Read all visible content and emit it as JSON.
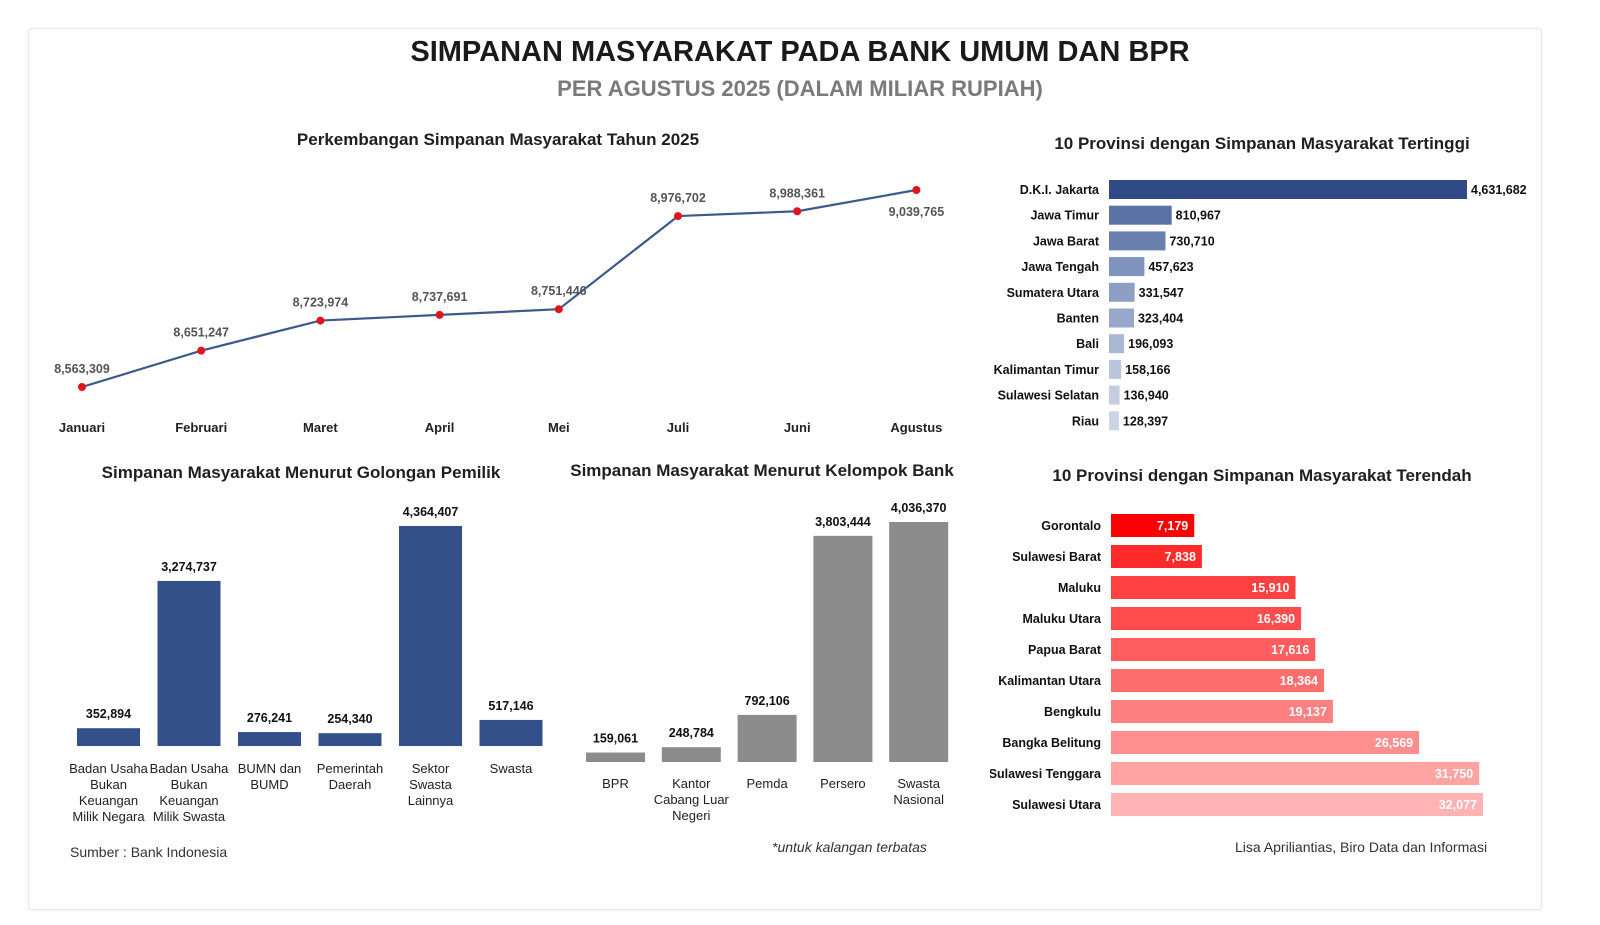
{
  "header": {
    "title": "SIMPANAN MASYARAKAT PADA BANK UMUM DAN BPR",
    "subtitle": "PER AGUSTUS 2025 (DALAM MILIAR RUPIAH)"
  },
  "footer": {
    "source": "Sumber : Bank Indonesia",
    "note": "*untuk kalangan terbatas",
    "author": "Lisa Apriliantias, Biro Data dan Informasi"
  },
  "colors": {
    "navy": "#34508a",
    "gray": "#8c8c8c",
    "point": "#e0141e",
    "line": "#3d5a8c",
    "red": "#ff0000"
  },
  "chart_data": [
    {
      "id": "trend",
      "type": "line",
      "title": "Perkembangan Simpanan Masyarakat Tahun 2025",
      "categories": [
        "Januari",
        "Februari",
        "Maret",
        "April",
        "Mei",
        "Juli",
        "Juni",
        "Agustus"
      ],
      "values": [
        8563309,
        8651247,
        8723974,
        8737691,
        8751446,
        8976702,
        8988361,
        9039765
      ],
      "value_labels": [
        "8,563,309",
        "8,651,247",
        "8,723,974",
        "8,737,691",
        "8,751,446",
        "8,976,702",
        "8,988,361",
        "9,039,765"
      ],
      "grid": false
    },
    {
      "id": "top10",
      "type": "bar",
      "orientation": "horizontal",
      "title": "10 Provinsi dengan Simpanan Masyarakat Tertinggi",
      "categories": [
        "D.K.I. Jakarta",
        "Jawa Timur",
        "Jawa Barat",
        "Jawa Tengah",
        "Sumatera Utara",
        "Banten",
        "Bali",
        "Kalimantan Timur",
        "Sulawesi Selatan",
        "Riau"
      ],
      "values": [
        4631682,
        810967,
        730710,
        457623,
        331547,
        323404,
        196093,
        158166,
        136940,
        128397
      ],
      "value_labels": [
        "4,631,682",
        "810,967",
        "730,710",
        "457,623",
        "331,547",
        "323,404",
        "196,093",
        "158,166",
        "136,940",
        "128,397"
      ]
    },
    {
      "id": "pemilik",
      "type": "bar",
      "title": "Simpanan Masyarakat Menurut Golongan Pemilik",
      "categories": [
        "Badan Usaha Bukan Keuangan Milik Negara",
        "Badan Usaha Bukan Keuangan Milik Swasta",
        "BUMN dan BUMD",
        "Pemerintah Daerah",
        "Sektor Swasta Lainnya",
        "Swasta"
      ],
      "values": [
        352894,
        3274737,
        276241,
        254340,
        4364407,
        517146
      ],
      "value_labels": [
        "352,894",
        "3,274,737",
        "276,241",
        "254,340",
        "4,364,407",
        "517,146"
      ]
    },
    {
      "id": "kelompok",
      "type": "bar",
      "title": "Simpanan Masyarakat Menurut Kelompok Bank",
      "categories": [
        "BPR",
        "Kantor Cabang Luar Negeri",
        "Pemda",
        "Persero",
        "Swasta Nasional"
      ],
      "values": [
        159061,
        248784,
        792106,
        3803444,
        4036370
      ],
      "value_labels": [
        "159,061",
        "248,784",
        "792,106",
        "3,803,444",
        "4,036,370"
      ]
    },
    {
      "id": "bottom10",
      "type": "bar",
      "orientation": "horizontal",
      "title": "10 Provinsi dengan Simpanan Masyarakat Terendah",
      "categories": [
        "Gorontalo",
        "Sulawesi Barat",
        "Maluku",
        "Maluku Utara",
        "Papua Barat",
        "Kalimantan Utara",
        "Bengkulu",
        "Bangka Belitung",
        "Sulawesi Tenggara",
        "Sulawesi Utara"
      ],
      "values": [
        7179,
        7838,
        15910,
        16390,
        17616,
        18364,
        19137,
        26569,
        31750,
        32077
      ],
      "value_labels": [
        "7,179",
        "7,838",
        "15,910",
        "16,390",
        "17,616",
        "18,364",
        "19,137",
        "26,569",
        "31,750",
        "32,077"
      ]
    }
  ]
}
